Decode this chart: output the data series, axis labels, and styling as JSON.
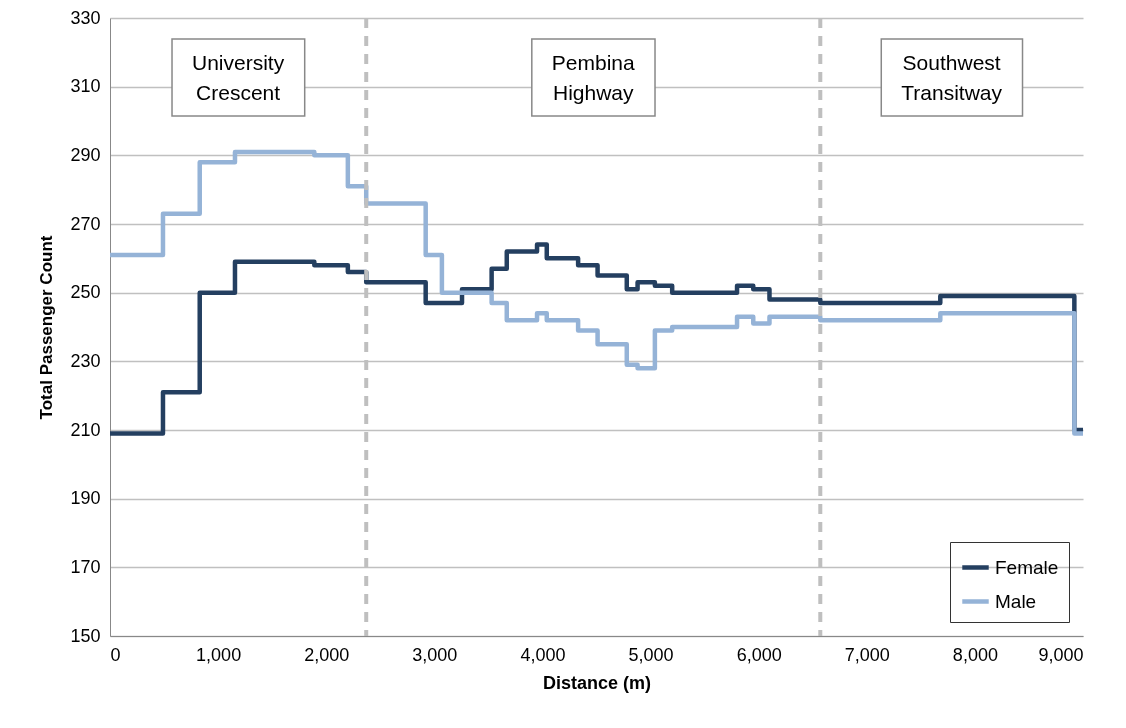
{
  "chart_data": {
    "type": "step",
    "xlabel": "Distance (m)",
    "ylabel": "Total Passenger Count",
    "x": [
      0,
      490,
      830,
      1156,
      1890,
      2200,
      2370,
      2920,
      3070,
      3256,
      3530,
      3670,
      3950,
      4040,
      4330,
      4510,
      4780,
      4880,
      5040,
      5200,
      5800,
      5950,
      6100,
      6570,
      7680,
      8920,
      9000
    ],
    "series": [
      {
        "name": "Female",
        "color": "#243f60",
        "values": [
          209,
          221,
          250,
          259,
          258,
          256,
          253,
          247,
          247,
          251,
          257,
          262,
          264,
          260,
          258,
          255,
          251,
          253,
          252,
          250,
          252,
          251,
          248,
          247,
          249,
          210,
          210
        ]
      },
      {
        "name": "Male",
        "color": "#95b3d7",
        "values": [
          261,
          273,
          288,
          291,
          290,
          281,
          276,
          261,
          250,
          250,
          247,
          242,
          244,
          242,
          239,
          235,
          229,
          228,
          239,
          240,
          243,
          241,
          243,
          242,
          244,
          209,
          209
        ]
      }
    ],
    "xlim": [
      0,
      9000
    ],
    "xticks": [
      0,
      {
        "value": 1000,
        "label": "1,000"
      },
      {
        "value": 2000,
        "label": "2,000"
      },
      {
        "value": 3000,
        "label": "3,000"
      },
      {
        "value": 4000,
        "label": "4,000"
      },
      {
        "value": 5000,
        "label": "5,000"
      },
      {
        "value": 6000,
        "label": "6,000"
      },
      {
        "value": 7000,
        "label": "7,000"
      },
      {
        "value": 8000,
        "label": "8,000"
      },
      {
        "value": 9000,
        "label": "9,000"
      }
    ],
    "ylim": [
      150,
      330
    ],
    "yticks": [
      150,
      170,
      190,
      210,
      230,
      250,
      270,
      290,
      310,
      330
    ],
    "ref_lines": [
      {
        "axis": "x",
        "value": 2370,
        "color": "#bfbfbf",
        "line_style": "dashed"
      },
      {
        "axis": "x",
        "value": 6570,
        "color": "#bfbfbf",
        "line_style": "dashed"
      }
    ],
    "annotations": [
      "University Crescent",
      "Pembina Highway",
      "Southwest Transitway"
    ],
    "grid": "y",
    "legend": "bottom right",
    "line_style": "solid",
    "marker": "none"
  }
}
